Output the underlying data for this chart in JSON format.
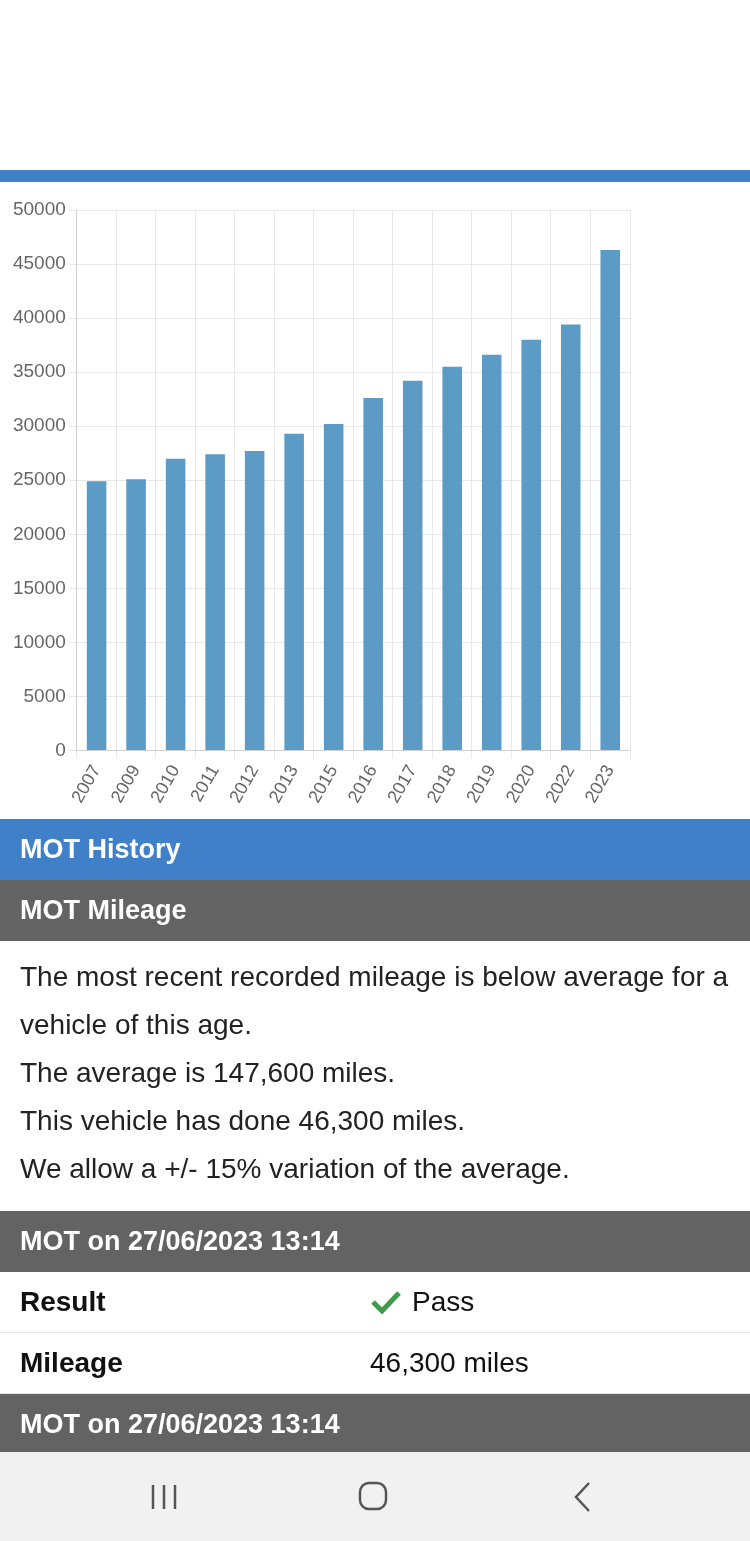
{
  "chart_data": {
    "type": "bar",
    "categories": [
      "2007",
      "2009",
      "2010",
      "2011",
      "2012",
      "2013",
      "2015",
      "2016",
      "2017",
      "2018",
      "2019",
      "2020",
      "2022",
      "2023"
    ],
    "values": [
      24900,
      25100,
      27000,
      27400,
      27700,
      29300,
      30200,
      32600,
      34200,
      35500,
      36600,
      38000,
      39400,
      46300
    ],
    "color": "#5b9bc6",
    "ylim": [
      0,
      50000
    ],
    "yticks": [
      0,
      5000,
      10000,
      15000,
      20000,
      25000,
      30000,
      35000,
      40000,
      45000,
      50000
    ],
    "grid": true,
    "legend": false,
    "annotations": [
      "MOT History",
      "MOT Mileage",
      "The most recent recorded mileage is below average for a vehicle of this age.",
      "The average is 147,600 miles.",
      "This vehicle has done 46,300 miles.",
      "We allow a +/- 15% variation of the average.",
      "MOT on 27/06/2023 13:14",
      "Result",
      "Pass",
      "Mileage",
      "46,300 miles",
      "MOT on 27/06/2023 13:14"
    ]
  }
}
